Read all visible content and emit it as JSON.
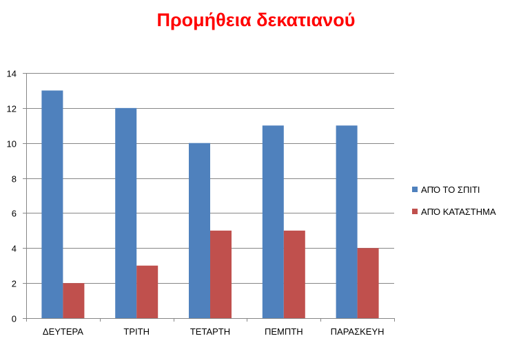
{
  "chart_data": {
    "type": "bar",
    "title": "Προμήθεια δεκατιανού",
    "categories": [
      "ΔΕΥΤΕΡΑ",
      "ΤΡΙΤΗ",
      "ΤΕΤΑΡΤΗ",
      "ΠΕΜΠΤΗ",
      "ΠΑΡΑΣΚΕΥΗ"
    ],
    "series": [
      {
        "name": "ΑΠΌ ΤΟ ΣΠΙΤΙ",
        "values": [
          13,
          12,
          10,
          11,
          11
        ],
        "color": "#4f81bd"
      },
      {
        "name": "ΑΠΌ ΚΑΤΑΣΤΗΜΑ",
        "values": [
          2,
          3,
          5,
          5,
          4
        ],
        "color": "#c0504d"
      }
    ],
    "ylim": [
      0,
      14
    ],
    "yticks": [
      0,
      2,
      4,
      6,
      8,
      10,
      12,
      14
    ],
    "grid": true,
    "legend_position": "right"
  }
}
